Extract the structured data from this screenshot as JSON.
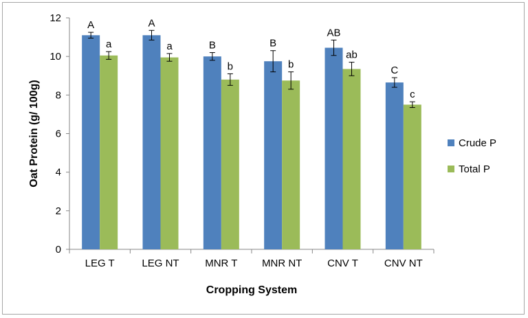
{
  "chart_data": {
    "type": "bar",
    "xlabel": "Cropping System",
    "ylabel": "Oat Protein (g/ 100g)",
    "ylim": [
      0,
      12
    ],
    "yticks": [
      0,
      2,
      4,
      6,
      8,
      10,
      12
    ],
    "grid": false,
    "legend_position": "right",
    "categories": [
      "LEG T",
      "LEG NT",
      "MNR T",
      "MNR NT",
      "CNV T",
      "CNV NT"
    ],
    "series": [
      {
        "name": "Crude P",
        "color": "#4f81bd",
        "values": [
          11.1,
          11.1,
          10.0,
          9.75,
          10.45,
          8.65
        ],
        "errors": [
          0.15,
          0.25,
          0.2,
          0.55,
          0.4,
          0.25
        ],
        "labels": [
          "A",
          "A",
          "B",
          "B",
          "AB",
          "C"
        ]
      },
      {
        "name": "Total P",
        "color": "#9bbb59",
        "values": [
          10.05,
          9.95,
          8.8,
          8.75,
          9.35,
          7.5
        ],
        "errors": [
          0.2,
          0.2,
          0.3,
          0.45,
          0.35,
          0.15
        ],
        "labels": [
          "a",
          "a",
          "b",
          "b",
          "ab",
          "c"
        ]
      }
    ]
  }
}
